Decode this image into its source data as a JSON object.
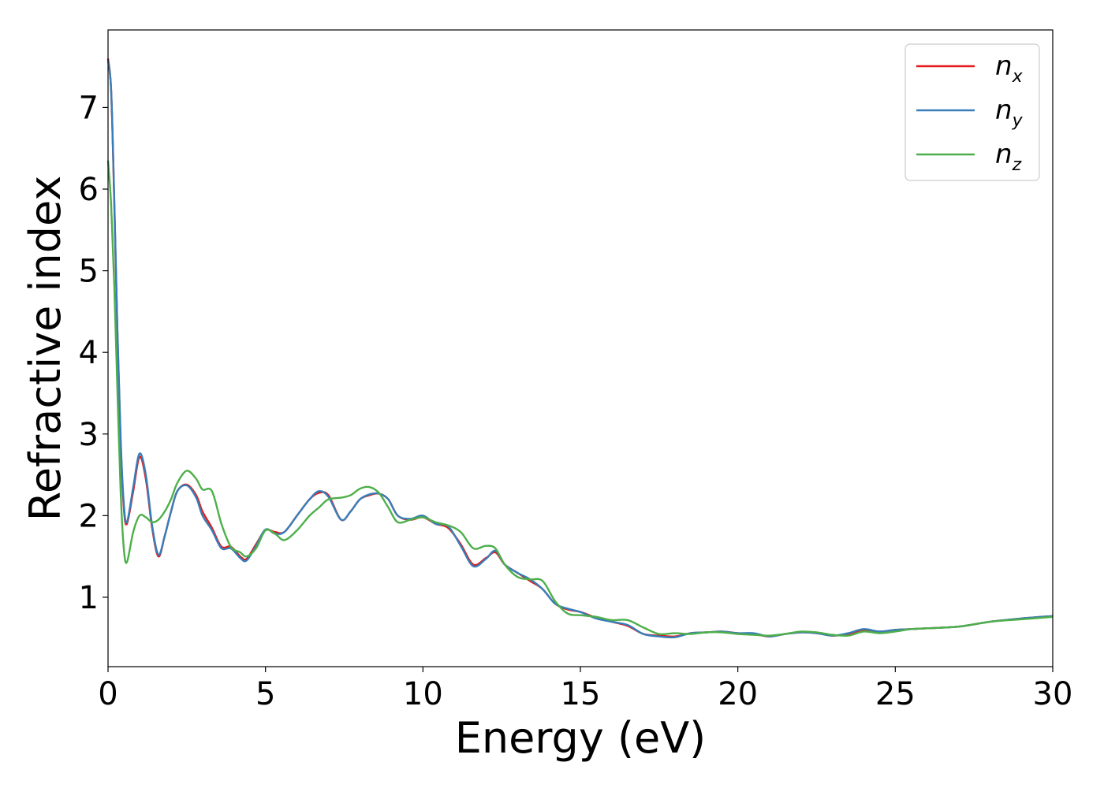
{
  "chart_data": {
    "type": "line",
    "xlabel": "Energy (eV)",
    "ylabel": "Refractive index",
    "xlim": [
      0,
      30
    ],
    "ylim": [
      0.15,
      7.95
    ],
    "xticks": [
      0,
      5,
      10,
      15,
      20,
      25,
      30
    ],
    "yticks": [
      1,
      2,
      3,
      4,
      5,
      6,
      7
    ],
    "grid": false,
    "legend_position": "top-right",
    "series": [
      {
        "name": "n_x",
        "label_base": "n",
        "label_sub": "x",
        "color": "#e41a1c",
        "x": [
          0,
          0.1,
          0.2,
          0.3,
          0.4,
          0.5,
          0.6,
          0.8,
          1.0,
          1.2,
          1.4,
          1.6,
          1.8,
          2.0,
          2.2,
          2.5,
          2.8,
          3.0,
          3.3,
          3.6,
          3.9,
          4.2,
          4.4,
          4.7,
          5.0,
          5.3,
          5.6,
          6.0,
          6.4,
          6.7,
          7.0,
          7.4,
          7.7,
          8.0,
          8.3,
          8.6,
          8.9,
          9.2,
          9.6,
          10.0,
          10.4,
          10.8,
          11.2,
          11.6,
          12.0,
          12.3,
          12.6,
          13.0,
          13.4,
          13.8,
          14.2,
          14.6,
          15.0,
          15.5,
          16.0,
          16.5,
          17.0,
          17.5,
          18.0,
          18.5,
          19.0,
          19.5,
          20.0,
          20.5,
          21.0,
          21.5,
          22.0,
          22.5,
          23.0,
          23.5,
          24.0,
          24.5,
          25.0,
          25.5,
          26.0,
          27.0,
          28.0,
          29.0,
          30.0
        ],
        "y": [
          7.6,
          7.2,
          5.8,
          4.2,
          2.9,
          2.1,
          1.9,
          2.3,
          2.72,
          2.45,
          1.85,
          1.5,
          1.75,
          2.05,
          2.3,
          2.38,
          2.25,
          2.05,
          1.85,
          1.62,
          1.62,
          1.5,
          1.47,
          1.65,
          1.82,
          1.8,
          1.8,
          2.0,
          2.2,
          2.28,
          2.25,
          1.95,
          2.05,
          2.2,
          2.25,
          2.27,
          2.2,
          2.0,
          1.95,
          1.98,
          1.9,
          1.85,
          1.65,
          1.4,
          1.48,
          1.55,
          1.4,
          1.3,
          1.2,
          1.1,
          0.92,
          0.85,
          0.82,
          0.75,
          0.7,
          0.65,
          0.55,
          0.53,
          0.52,
          0.56,
          0.57,
          0.58,
          0.56,
          0.55,
          0.52,
          0.55,
          0.57,
          0.56,
          0.53,
          0.55,
          0.6,
          0.58,
          0.6,
          0.61,
          0.62,
          0.64,
          0.7,
          0.74,
          0.77
        ]
      },
      {
        "name": "n_y",
        "label_base": "n",
        "label_sub": "y",
        "color": "#377eb8",
        "x": [
          0,
          0.1,
          0.2,
          0.3,
          0.4,
          0.5,
          0.6,
          0.8,
          1.0,
          1.2,
          1.4,
          1.6,
          1.8,
          2.0,
          2.2,
          2.5,
          2.8,
          3.0,
          3.3,
          3.6,
          3.9,
          4.2,
          4.4,
          4.7,
          5.0,
          5.3,
          5.6,
          6.0,
          6.4,
          6.7,
          7.0,
          7.4,
          7.7,
          8.0,
          8.3,
          8.6,
          8.9,
          9.2,
          9.6,
          10.0,
          10.4,
          10.8,
          11.2,
          11.6,
          12.0,
          12.3,
          12.6,
          13.0,
          13.4,
          13.8,
          14.2,
          14.6,
          15.0,
          15.5,
          16.0,
          16.5,
          17.0,
          17.5,
          18.0,
          18.5,
          19.0,
          19.5,
          20.0,
          20.5,
          21.0,
          21.5,
          22.0,
          22.5,
          23.0,
          23.5,
          24.0,
          24.5,
          25.0,
          25.5,
          26.0,
          27.0,
          28.0,
          29.0,
          30.0
        ],
        "y": [
          7.58,
          7.2,
          5.85,
          4.25,
          2.95,
          2.15,
          1.92,
          2.35,
          2.76,
          2.5,
          1.88,
          1.52,
          1.75,
          2.05,
          2.3,
          2.37,
          2.22,
          2.0,
          1.82,
          1.6,
          1.6,
          1.48,
          1.45,
          1.63,
          1.83,
          1.78,
          1.8,
          2.0,
          2.2,
          2.3,
          2.23,
          1.95,
          2.05,
          2.2,
          2.26,
          2.27,
          2.2,
          2.0,
          1.96,
          2.0,
          1.9,
          1.87,
          1.63,
          1.38,
          1.47,
          1.57,
          1.4,
          1.3,
          1.22,
          1.1,
          0.92,
          0.86,
          0.82,
          0.74,
          0.7,
          0.66,
          0.55,
          0.52,
          0.51,
          0.56,
          0.57,
          0.58,
          0.56,
          0.56,
          0.52,
          0.55,
          0.57,
          0.56,
          0.53,
          0.56,
          0.61,
          0.58,
          0.6,
          0.61,
          0.62,
          0.64,
          0.7,
          0.74,
          0.77
        ]
      },
      {
        "name": "n_z",
        "label_base": "n",
        "label_sub": "z",
        "color": "#4daf4a",
        "x": [
          0,
          0.1,
          0.2,
          0.3,
          0.4,
          0.5,
          0.6,
          0.8,
          1.0,
          1.2,
          1.4,
          1.6,
          1.8,
          2.0,
          2.2,
          2.5,
          2.8,
          3.0,
          3.3,
          3.6,
          3.9,
          4.2,
          4.4,
          4.7,
          5.0,
          5.3,
          5.6,
          6.0,
          6.4,
          6.7,
          7.0,
          7.4,
          7.7,
          8.0,
          8.3,
          8.6,
          8.9,
          9.2,
          9.6,
          10.0,
          10.4,
          10.8,
          11.2,
          11.6,
          12.0,
          12.3,
          12.6,
          13.0,
          13.4,
          13.8,
          14.2,
          14.6,
          15.0,
          15.5,
          16.0,
          16.5,
          17.0,
          17.5,
          18.0,
          18.5,
          19.0,
          19.5,
          20.0,
          20.5,
          21.0,
          21.5,
          22.0,
          22.5,
          23.0,
          23.5,
          24.0,
          24.5,
          25.0,
          25.5,
          26.0,
          27.0,
          28.0,
          29.0,
          30.0
        ],
        "y": [
          6.35,
          5.8,
          4.8,
          3.5,
          2.3,
          1.6,
          1.43,
          1.8,
          2.0,
          1.98,
          1.92,
          1.95,
          2.05,
          2.2,
          2.4,
          2.55,
          2.45,
          2.32,
          2.3,
          1.9,
          1.62,
          1.55,
          1.5,
          1.6,
          1.82,
          1.78,
          1.7,
          1.82,
          2.0,
          2.1,
          2.2,
          2.22,
          2.25,
          2.33,
          2.35,
          2.28,
          2.1,
          1.92,
          1.95,
          1.98,
          1.92,
          1.88,
          1.8,
          1.6,
          1.63,
          1.6,
          1.4,
          1.25,
          1.22,
          1.2,
          0.95,
          0.8,
          0.78,
          0.76,
          0.72,
          0.72,
          0.63,
          0.55,
          0.56,
          0.55,
          0.57,
          0.57,
          0.55,
          0.54,
          0.53,
          0.55,
          0.58,
          0.57,
          0.54,
          0.53,
          0.58,
          0.56,
          0.58,
          0.61,
          0.62,
          0.64,
          0.7,
          0.73,
          0.76
        ]
      }
    ]
  }
}
